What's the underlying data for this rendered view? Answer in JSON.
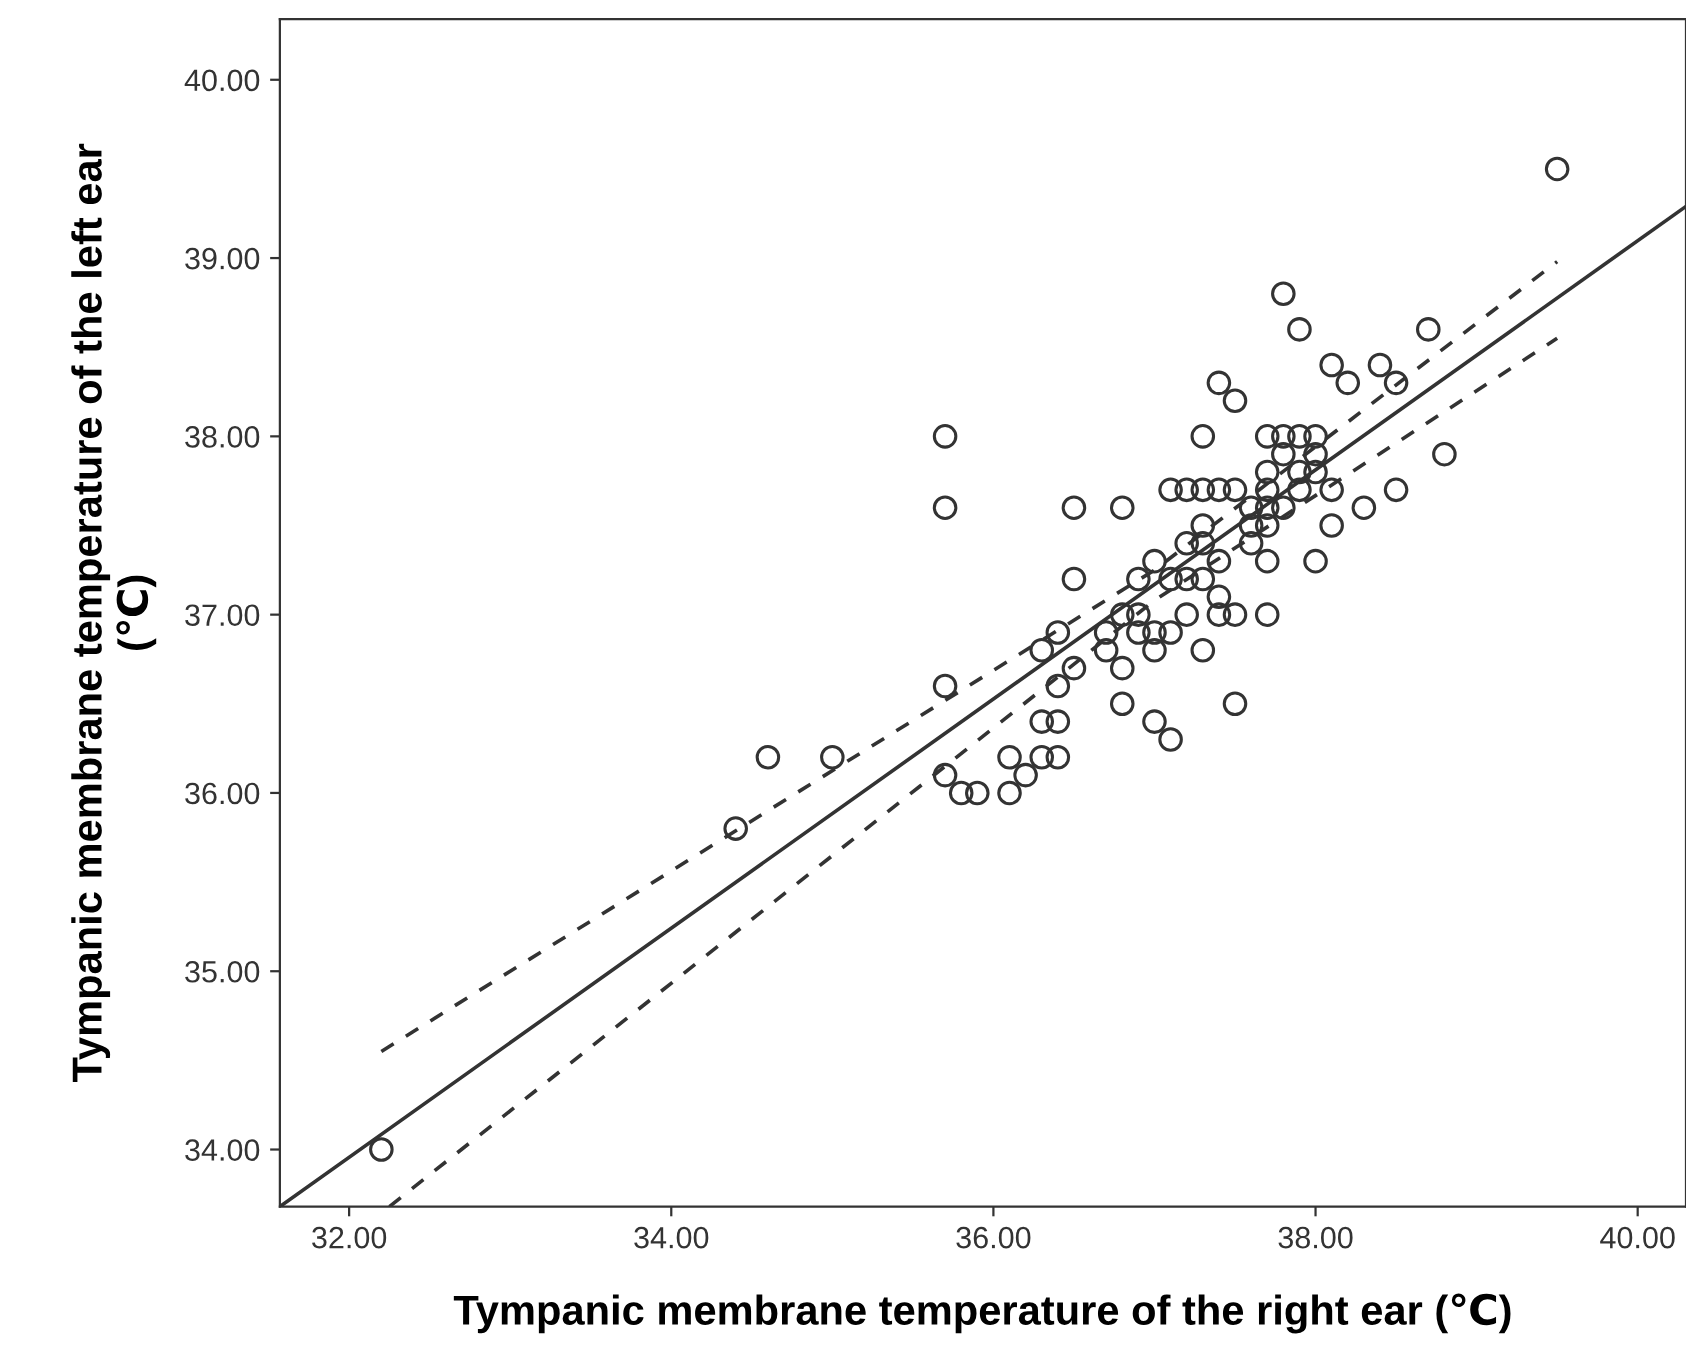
{
  "chart_data": {
    "type": "scatter",
    "xlabel": "Tympanic membrane temperature of the right ear (℃)",
    "ylabel": "Tympanic membrane temperature of the left ear\n(℃)",
    "xlim": [
      31.57,
      40.3
    ],
    "ylim": [
      33.68,
      40.34
    ],
    "xticks": [
      {
        "value": 32,
        "label": "32.00"
      },
      {
        "value": 34,
        "label": "34.00"
      },
      {
        "value": 36,
        "label": "36.00"
      },
      {
        "value": 38,
        "label": "38.00"
      },
      {
        "value": 40,
        "label": "40.00"
      }
    ],
    "yticks": [
      {
        "value": 34,
        "label": "34.00"
      },
      {
        "value": 35,
        "label": "35.00"
      },
      {
        "value": 36,
        "label": "36.00"
      },
      {
        "value": 37,
        "label": "37.00"
      },
      {
        "value": 38,
        "label": "38.00"
      },
      {
        "value": 39,
        "label": "39.00"
      },
      {
        "value": 40,
        "label": "40.00"
      }
    ],
    "grid": false,
    "legend": false,
    "series": [
      {
        "color": "#333333",
        "marker": "circle",
        "x": [
          32.2,
          34.4,
          34.6,
          35.0,
          35.7,
          35.7,
          35.7,
          35.7,
          35.8,
          35.9,
          36.1,
          36.1,
          36.2,
          36.3,
          36.4,
          36.3,
          36.4,
          36.4,
          36.3,
          36.4,
          36.5,
          36.5,
          36.5,
          36.7,
          36.7,
          36.8,
          36.8,
          36.8,
          36.8,
          36.9,
          36.9,
          36.9,
          37.0,
          37.0,
          37.0,
          37.0,
          37.1,
          37.1,
          37.1,
          37.1,
          37.2,
          37.2,
          37.2,
          37.2,
          37.3,
          37.3,
          37.3,
          37.3,
          37.3,
          37.3,
          37.4,
          37.4,
          37.4,
          37.4,
          37.4,
          37.5,
          37.5,
          37.5,
          37.5,
          37.6,
          37.6,
          37.6,
          37.7,
          37.7,
          37.7,
          37.7,
          37.7,
          37.7,
          37.7,
          37.8,
          37.8,
          37.8,
          37.8,
          37.9,
          37.9,
          37.9,
          37.9,
          38.0,
          38.0,
          38.0,
          38.0,
          38.1,
          38.1,
          38.1,
          38.2,
          38.3,
          38.4,
          38.5,
          38.5,
          38.7,
          38.8,
          39.5
        ],
        "values": [
          34.0,
          35.8,
          36.2,
          36.2,
          38.0,
          37.6,
          36.6,
          36.1,
          36.0,
          36.0,
          36.0,
          36.2,
          36.1,
          36.2,
          36.2,
          36.4,
          36.4,
          36.6,
          36.8,
          36.9,
          36.7,
          37.2,
          37.6,
          36.8,
          36.9,
          36.7,
          36.5,
          37.0,
          37.6,
          37.0,
          36.9,
          37.2,
          37.3,
          36.8,
          36.9,
          36.4,
          36.3,
          36.9,
          37.2,
          37.7,
          37.7,
          37.4,
          37.2,
          37.0,
          37.7,
          37.5,
          37.4,
          37.2,
          36.8,
          38.0,
          38.3,
          37.7,
          37.3,
          37.1,
          37.0,
          38.2,
          37.7,
          37.0,
          36.5,
          37.6,
          37.4,
          37.5,
          38.0,
          37.8,
          37.7,
          37.6,
          37.5,
          37.3,
          37.0,
          38.8,
          38.0,
          37.9,
          37.6,
          38.6,
          38.0,
          37.7,
          37.8,
          38.0,
          37.9,
          37.8,
          37.3,
          38.4,
          37.7,
          37.5,
          38.3,
          37.6,
          38.4,
          38.3,
          37.7,
          38.6,
          37.9,
          39.5
        ]
      },
      {
        "type": "line",
        "color": "#333333",
        "line_style": "solid",
        "marker": "none",
        "x": [
          31.57,
          40.3
        ],
        "values": [
          33.68,
          39.29
        ]
      },
      {
        "type": "line",
        "color": "#333333",
        "line_style": "dashed",
        "marker": "none",
        "x": [
          32.2,
          37.0,
          39.5
        ],
        "values": [
          34.55,
          37.25,
          38.98
        ]
      },
      {
        "type": "line",
        "color": "#333333",
        "line_style": "dashed",
        "marker": "none",
        "x": [
          32.25,
          37.0,
          39.5
        ],
        "values": [
          33.68,
          37.08,
          38.55
        ]
      }
    ]
  }
}
